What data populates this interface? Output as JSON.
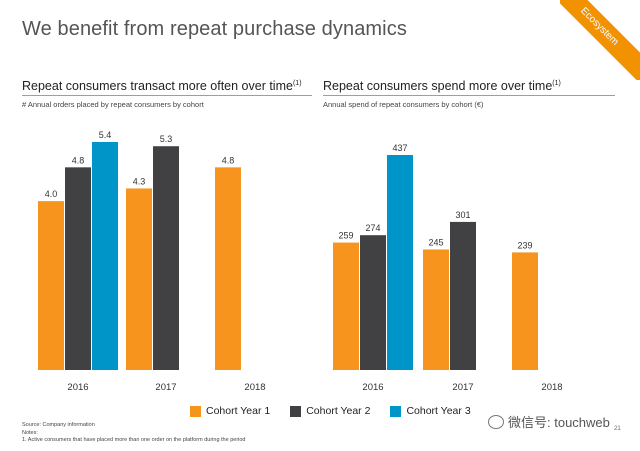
{
  "slide": {
    "title": "We benefit from repeat purchase dynamics",
    "ribbon": "Ecosystem",
    "page_number": "21"
  },
  "left_panel": {
    "title": "Repeat consumers transact more often over time",
    "title_note": "(1)",
    "subtitle": "# Annual orders placed by repeat consumers by cohort"
  },
  "right_panel": {
    "title": "Repeat consumers spend more over time",
    "title_note": "(1)",
    "subtitle": "Annual spend of repeat consumers by cohort (€)"
  },
  "legend": [
    {
      "label": "Cohort Year 1",
      "color": "#f7941d"
    },
    {
      "label": "Cohort Year 2",
      "color": "#414042"
    },
    {
      "label": "Cohort Year 3",
      "color": "#0095c8"
    }
  ],
  "footer": {
    "source": "Source: Company information",
    "notes": "Notes:",
    "note1": "1.   Active consumers that have placed more than one order on the platform during the period"
  },
  "watermark": "微信号: touchweb",
  "chart_data": [
    {
      "type": "bar",
      "categories": [
        "2016",
        "2017",
        "2018"
      ],
      "series": [
        {
          "name": "Cohort Year 1",
          "color": "#f7941d",
          "values": [
            4.0,
            4.3,
            4.8
          ],
          "labels": [
            "4.0",
            "4.3",
            "4.8"
          ]
        },
        {
          "name": "Cohort Year 2",
          "color": "#414042",
          "values": [
            4.8,
            5.3,
            null
          ],
          "labels": [
            "4.8",
            "5.3",
            ""
          ]
        },
        {
          "name": "Cohort Year 3",
          "color": "#0095c8",
          "values": [
            5.4,
            null,
            null
          ],
          "labels": [
            "5.4",
            "",
            ""
          ]
        }
      ],
      "ylim": [
        0,
        5.4
      ],
      "grid": false
    },
    {
      "type": "bar",
      "categories": [
        "2016",
        "2017",
        "2018"
      ],
      "series": [
        {
          "name": "Cohort Year 1",
          "color": "#f7941d",
          "values": [
            259,
            245,
            239
          ],
          "labels": [
            "259",
            "245",
            "239"
          ]
        },
        {
          "name": "Cohort Year 2",
          "color": "#414042",
          "values": [
            274,
            301,
            null
          ],
          "labels": [
            "274",
            "301",
            ""
          ]
        },
        {
          "name": "Cohort Year 3",
          "color": "#0095c8",
          "values": [
            437,
            null,
            null
          ],
          "labels": [
            "437",
            "",
            ""
          ]
        }
      ],
      "ylim": [
        0,
        437
      ],
      "grid": false
    }
  ]
}
